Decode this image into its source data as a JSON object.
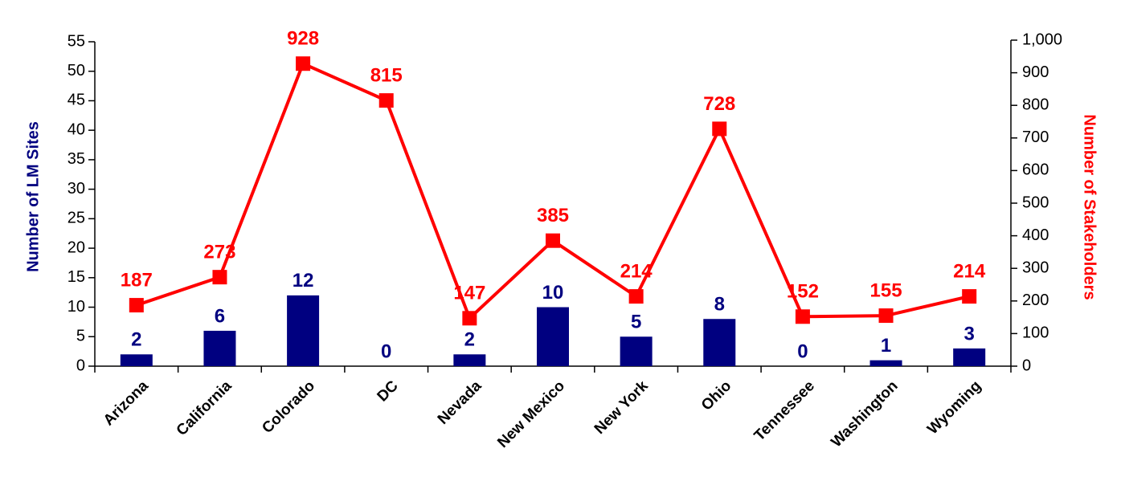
{
  "chart_data": {
    "type": "combo",
    "categories": [
      "Arizona",
      "California",
      "Colorado",
      "DC",
      "Nevada",
      "New Mexico",
      "New York",
      "Ohio",
      "Tennessee",
      "Washington",
      "Wyoming"
    ],
    "series": [
      {
        "type": "bar",
        "color": "#000080",
        "values": [
          2,
          6,
          12,
          0,
          2,
          10,
          5,
          8,
          0,
          1,
          3
        ]
      },
      {
        "type": "line",
        "color": "#ff0000",
        "axis": "y2",
        "values": [
          187,
          273,
          928,
          815,
          147,
          385,
          214,
          728,
          152,
          155,
          214
        ]
      }
    ],
    "ylabel": "Number of LM Sites",
    "y2label": "Number of Stakeholders",
    "ylim": [
      0,
      55
    ],
    "yticks": [
      0,
      5,
      10,
      15,
      20,
      25,
      30,
      35,
      40,
      45,
      50,
      55
    ],
    "y2lim": [
      0,
      1000
    ],
    "y2ticks": [
      0,
      100,
      200,
      300,
      400,
      500,
      600,
      700,
      800,
      900,
      {
        "value": 1000,
        "label": "1,000"
      }
    ]
  }
}
